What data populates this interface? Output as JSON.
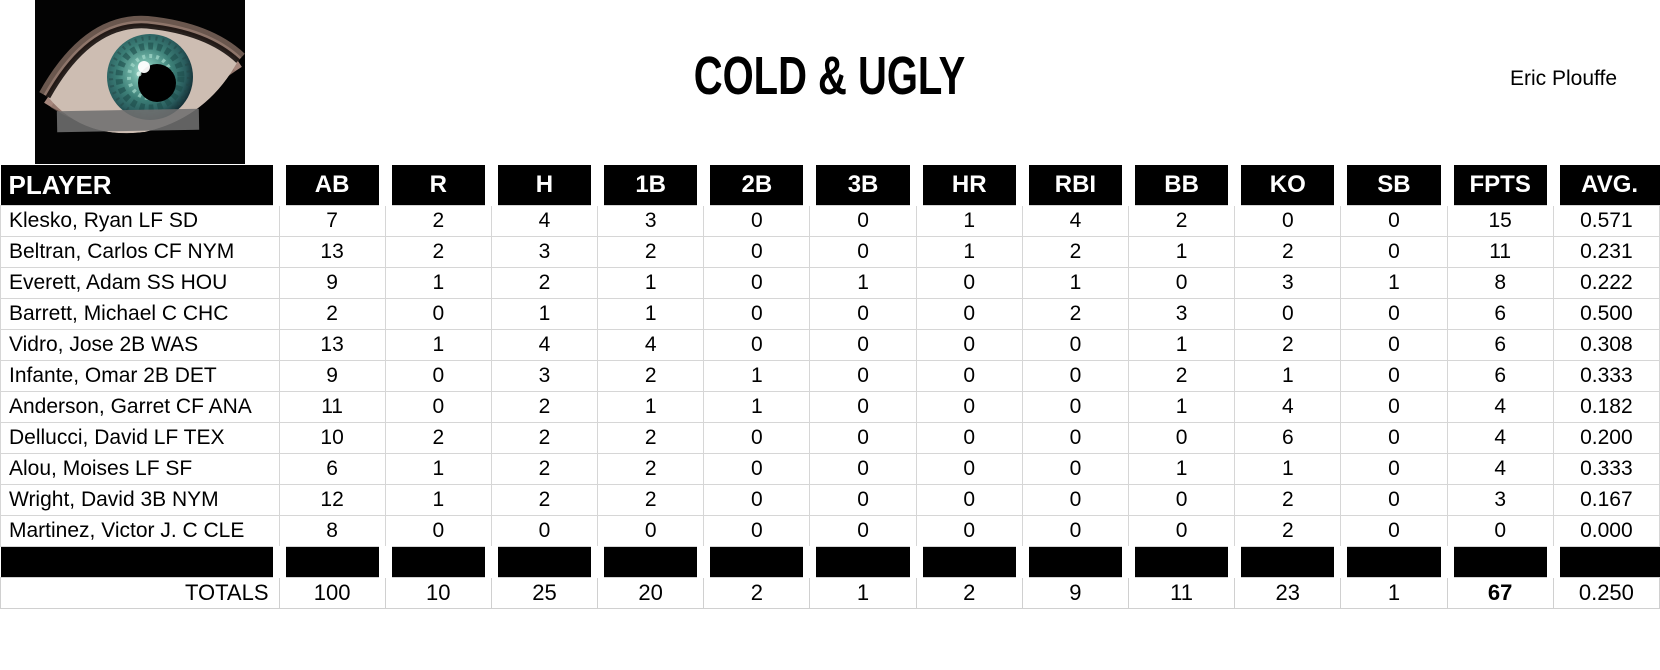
{
  "header": {
    "title": "COLD & UGLY",
    "author": "Eric Plouffe",
    "icon": "eye-logo"
  },
  "table": {
    "columns": [
      "PLAYER",
      "AB",
      "R",
      "H",
      "1B",
      "2B",
      "3B",
      "HR",
      "RBI",
      "BB",
      "KO",
      "SB",
      "FPTS",
      "AVG."
    ],
    "players": [
      {
        "name": "Klesko, Ryan LF SD",
        "values": [
          "7",
          "2",
          "4",
          "3",
          "0",
          "0",
          "1",
          "4",
          "2",
          "0",
          "0",
          "15",
          "0.571"
        ]
      },
      {
        "name": "Beltran, Carlos CF NYM",
        "values": [
          "13",
          "2",
          "3",
          "2",
          "0",
          "0",
          "1",
          "2",
          "1",
          "2",
          "0",
          "11",
          "0.231"
        ]
      },
      {
        "name": "Everett, Adam SS HOU",
        "values": [
          "9",
          "1",
          "2",
          "1",
          "0",
          "1",
          "0",
          "1",
          "0",
          "3",
          "1",
          "8",
          "0.222"
        ]
      },
      {
        "name": "Barrett, Michael C CHC",
        "values": [
          "2",
          "0",
          "1",
          "1",
          "0",
          "0",
          "0",
          "2",
          "3",
          "0",
          "0",
          "6",
          "0.500"
        ]
      },
      {
        "name": "Vidro, Jose 2B WAS",
        "values": [
          "13",
          "1",
          "4",
          "4",
          "0",
          "0",
          "0",
          "0",
          "1",
          "2",
          "0",
          "6",
          "0.308"
        ]
      },
      {
        "name": "Infante, Omar 2B DET",
        "values": [
          "9",
          "0",
          "3",
          "2",
          "1",
          "0",
          "0",
          "0",
          "2",
          "1",
          "0",
          "6",
          "0.333"
        ]
      },
      {
        "name": "Anderson, Garret CF ANA",
        "values": [
          "11",
          "0",
          "2",
          "1",
          "1",
          "0",
          "0",
          "0",
          "1",
          "4",
          "0",
          "4",
          "0.182"
        ]
      },
      {
        "name": "Dellucci, David LF TEX",
        "values": [
          "10",
          "2",
          "2",
          "2",
          "0",
          "0",
          "0",
          "0",
          "0",
          "6",
          "0",
          "4",
          "0.200"
        ]
      },
      {
        "name": "Alou, Moises LF SF",
        "values": [
          "6",
          "1",
          "2",
          "2",
          "0",
          "0",
          "0",
          "0",
          "1",
          "1",
          "0",
          "4",
          "0.333"
        ]
      },
      {
        "name": "Wright, David 3B NYM",
        "values": [
          "12",
          "1",
          "2",
          "2",
          "0",
          "0",
          "0",
          "0",
          "0",
          "2",
          "0",
          "3",
          "0.167"
        ]
      },
      {
        "name": "Martinez, Victor J. C CLE",
        "values": [
          "8",
          "0",
          "0",
          "0",
          "0",
          "0",
          "0",
          "0",
          "0",
          "2",
          "0",
          "0",
          "0.000"
        ]
      }
    ],
    "totals": {
      "label": "TOTALS",
      "values": [
        "100",
        "10",
        "25",
        "20",
        "2",
        "1",
        "2",
        "9",
        "11",
        "23",
        "1",
        "67",
        "0.250"
      ]
    }
  },
  "colors": {
    "header_bg": "#000000",
    "header_text": "#ffffff",
    "grid_line": "#d6d6d6",
    "page_bg": "#ffffff",
    "text": "#000000",
    "iris_teal": "#3c7f77"
  }
}
